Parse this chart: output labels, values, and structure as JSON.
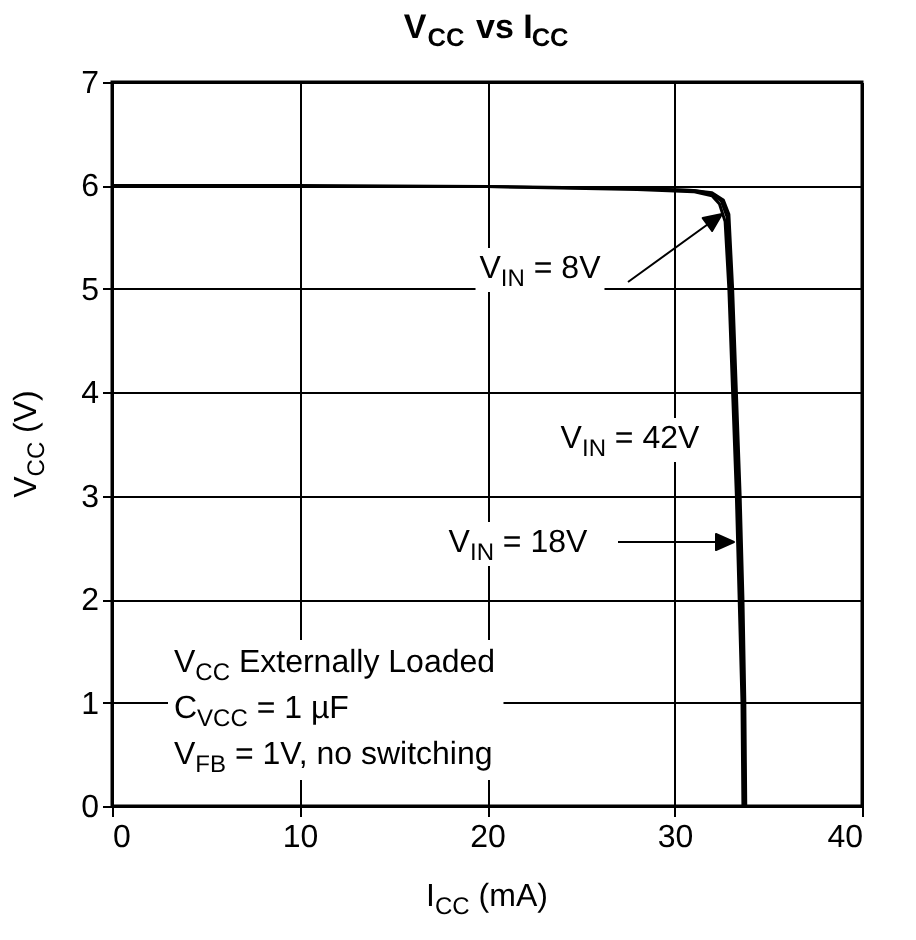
{
  "chart_data": {
    "type": "line",
    "title": "V$_{CC}$ vs I$_{CC}$",
    "xlabel": "I$_{CC}$ (mA)",
    "ylabel": "V$_{CC}$ (V)",
    "xlim": [
      0,
      40
    ],
    "xticks": [
      0,
      10,
      20,
      30,
      40
    ],
    "ylim": [
      0,
      7
    ],
    "yticks": [
      0,
      1,
      2,
      3,
      4,
      5,
      6,
      7
    ],
    "grid": true,
    "legend": false,
    "marker": "none",
    "line_style": "solid",
    "series": [
      {
        "color": "#000000",
        "x": [
          0,
          10,
          20,
          28,
          31,
          32,
          32.5,
          32.8,
          33.0,
          33.2,
          33.4,
          33.55,
          33.7,
          33.75
        ],
        "values": [
          6,
          6,
          5.99,
          5.97,
          5.95,
          5.92,
          5.85,
          5.7,
          5.0,
          4.0,
          3.0,
          2.0,
          1.0,
          0
        ]
      },
      {
        "color": "#000000",
        "x": [
          20,
          28,
          31,
          32,
          32.4,
          32.7,
          32.9,
          33.1,
          33.3,
          33.45,
          33.6,
          33.65
        ],
        "values": [
          5.99,
          5.96,
          5.94,
          5.9,
          5.82,
          5.65,
          5.0,
          4.0,
          3.0,
          2.0,
          1.0,
          0
        ]
      },
      {
        "color": "#000000",
        "x": [
          25,
          28,
          31,
          32,
          32.6,
          32.9,
          33.1,
          33.3,
          33.5,
          33.65,
          33.75,
          33.8
        ],
        "values": [
          5.98,
          5.97,
          5.95,
          5.93,
          5.86,
          5.72,
          5.0,
          4.0,
          3.0,
          2.0,
          1.0,
          0
        ]
      }
    ],
    "annotations": [
      "V$_{IN}$ = 8V",
      "V$_{IN}$ = 42V",
      "V$_{IN}$ = 18V",
      "V$_{CC}$ Externally Loaded",
      "C$_{VCC}$ = 1 µF",
      "V$_{FB}$ = 1V, no switching"
    ]
  }
}
